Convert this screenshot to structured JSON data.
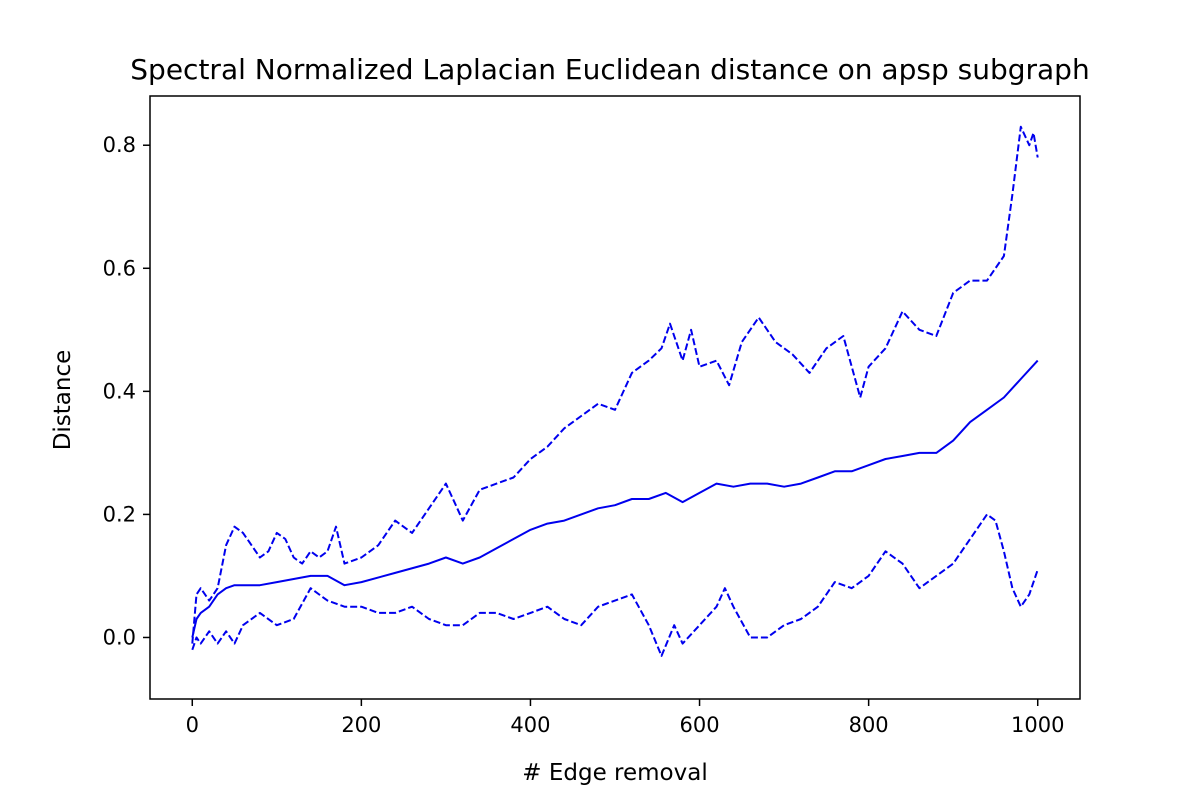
{
  "chart_data": {
    "type": "line",
    "title": "Spectral Normalized Laplacian Euclidean distance on apsp subgraph",
    "xlabel": "# Edge removal",
    "ylabel": "Distance",
    "xlim": [
      -50,
      1050
    ],
    "ylim": [
      -0.1,
      0.88
    ],
    "xticks": [
      0,
      200,
      400,
      600,
      800,
      1000
    ],
    "yticks": [
      0.0,
      0.2,
      0.4,
      0.6,
      0.8
    ],
    "xtick_labels": [
      "0",
      "200",
      "400",
      "600",
      "800",
      "1000"
    ],
    "ytick_labels": [
      "0.0",
      "0.2",
      "0.4",
      "0.6",
      "0.8"
    ],
    "grid": false,
    "color": "#0000ee",
    "series": [
      {
        "style": "solid",
        "x": [
          0,
          5,
          10,
          20,
          30,
          40,
          50,
          60,
          80,
          100,
          120,
          140,
          160,
          180,
          200,
          240,
          280,
          300,
          320,
          340,
          360,
          380,
          400,
          420,
          440,
          460,
          480,
          500,
          520,
          540,
          560,
          580,
          600,
          620,
          640,
          660,
          680,
          700,
          720,
          740,
          760,
          780,
          800,
          820,
          840,
          860,
          880,
          900,
          920,
          940,
          960,
          980,
          1000
        ],
        "values": [
          0.0,
          0.03,
          0.04,
          0.05,
          0.07,
          0.08,
          0.085,
          0.085,
          0.085,
          0.09,
          0.095,
          0.1,
          0.1,
          0.085,
          0.09,
          0.105,
          0.12,
          0.13,
          0.12,
          0.13,
          0.145,
          0.16,
          0.175,
          0.185,
          0.19,
          0.2,
          0.21,
          0.215,
          0.225,
          0.225,
          0.235,
          0.22,
          0.235,
          0.25,
          0.245,
          0.25,
          0.25,
          0.245,
          0.25,
          0.26,
          0.27,
          0.27,
          0.28,
          0.29,
          0.295,
          0.3,
          0.3,
          0.32,
          0.35,
          0.37,
          0.39,
          0.42,
          0.45
        ]
      },
      {
        "style": "dashed",
        "x": [
          0,
          5,
          10,
          15,
          20,
          30,
          40,
          50,
          60,
          70,
          80,
          90,
          100,
          110,
          120,
          130,
          140,
          150,
          160,
          170,
          180,
          200,
          220,
          240,
          260,
          280,
          300,
          310,
          320,
          340,
          360,
          380,
          400,
          420,
          440,
          460,
          480,
          500,
          520,
          540,
          555,
          565,
          580,
          590,
          600,
          620,
          635,
          650,
          670,
          690,
          710,
          730,
          750,
          770,
          790,
          800,
          820,
          840,
          860,
          880,
          900,
          920,
          940,
          960,
          970,
          980,
          990,
          995,
          1000
        ],
        "values": [
          -0.01,
          0.07,
          0.08,
          0.07,
          0.06,
          0.08,
          0.15,
          0.18,
          0.17,
          0.15,
          0.13,
          0.14,
          0.17,
          0.16,
          0.13,
          0.12,
          0.14,
          0.13,
          0.14,
          0.18,
          0.12,
          0.13,
          0.15,
          0.19,
          0.17,
          0.21,
          0.25,
          0.22,
          0.19,
          0.24,
          0.25,
          0.26,
          0.29,
          0.31,
          0.34,
          0.36,
          0.38,
          0.37,
          0.43,
          0.45,
          0.47,
          0.51,
          0.45,
          0.5,
          0.44,
          0.45,
          0.41,
          0.48,
          0.52,
          0.48,
          0.46,
          0.43,
          0.47,
          0.49,
          0.39,
          0.44,
          0.47,
          0.53,
          0.5,
          0.49,
          0.56,
          0.58,
          0.58,
          0.62,
          0.72,
          0.83,
          0.8,
          0.82,
          0.78
        ]
      },
      {
        "style": "dashed",
        "x": [
          0,
          5,
          10,
          20,
          30,
          40,
          50,
          60,
          80,
          100,
          120,
          140,
          160,
          180,
          200,
          220,
          240,
          260,
          280,
          300,
          320,
          340,
          360,
          380,
          400,
          420,
          440,
          460,
          480,
          500,
          520,
          540,
          555,
          570,
          580,
          600,
          620,
          630,
          640,
          660,
          680,
          700,
          720,
          740,
          760,
          780,
          800,
          820,
          840,
          860,
          880,
          900,
          920,
          940,
          950,
          960,
          970,
          980,
          990,
          1000
        ],
        "values": [
          -0.02,
          0.0,
          -0.01,
          0.01,
          -0.01,
          0.01,
          -0.01,
          0.02,
          0.04,
          0.02,
          0.03,
          0.08,
          0.06,
          0.05,
          0.05,
          0.04,
          0.04,
          0.05,
          0.03,
          0.02,
          0.02,
          0.04,
          0.04,
          0.03,
          0.04,
          0.05,
          0.03,
          0.02,
          0.05,
          0.06,
          0.07,
          0.02,
          -0.03,
          0.02,
          -0.01,
          0.02,
          0.05,
          0.08,
          0.05,
          0.0,
          0.0,
          0.02,
          0.03,
          0.05,
          0.09,
          0.08,
          0.1,
          0.14,
          0.12,
          0.08,
          0.1,
          0.12,
          0.16,
          0.2,
          0.19,
          0.14,
          0.08,
          0.05,
          0.07,
          0.11
        ]
      }
    ]
  }
}
